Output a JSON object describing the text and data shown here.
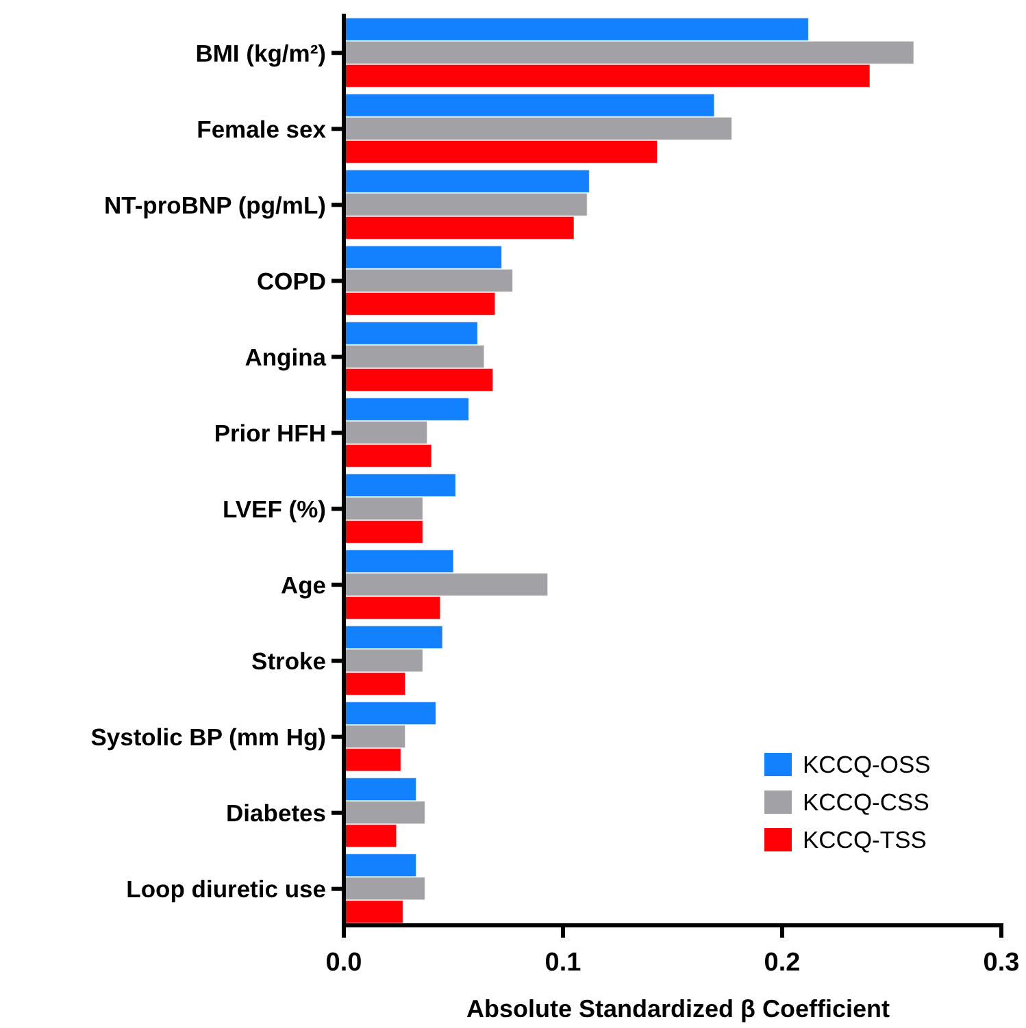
{
  "chart_data": {
    "type": "bar",
    "orientation": "horizontal",
    "xlabel": "Absolute Standardized β Coefficient",
    "categories": [
      "BMI (kg/m²)",
      "Female sex",
      "NT-proBNP (pg/mL)",
      "COPD",
      "Angina",
      "Prior HFH",
      "LVEF (%)",
      "Age",
      "Stroke",
      "Systolic BP (mm Hg)",
      "Diabetes",
      "Loop diuretic use"
    ],
    "series": [
      {
        "name": "KCCQ-OSS",
        "color": "#1380fe",
        "values": [
          0.212,
          0.169,
          0.112,
          0.072,
          0.061,
          0.057,
          0.051,
          0.05,
          0.045,
          0.042,
          0.033,
          0.033
        ]
      },
      {
        "name": "KCCQ-CSS",
        "color": "#a2a1a6",
        "values": [
          0.26,
          0.177,
          0.111,
          0.077,
          0.064,
          0.038,
          0.036,
          0.093,
          0.036,
          0.028,
          0.037,
          0.037
        ]
      },
      {
        "name": "KCCQ-TSS",
        "color": "#fe0006",
        "values": [
          0.24,
          0.143,
          0.105,
          0.069,
          0.068,
          0.04,
          0.036,
          0.044,
          0.028,
          0.026,
          0.024,
          0.027
        ]
      }
    ],
    "xlim": [
      0,
      0.3
    ],
    "xticks": [
      {
        "value": 0,
        "label": "0.0"
      },
      0.1,
      0.2,
      0.3
    ],
    "grid": false,
    "legend": "bottom right"
  }
}
